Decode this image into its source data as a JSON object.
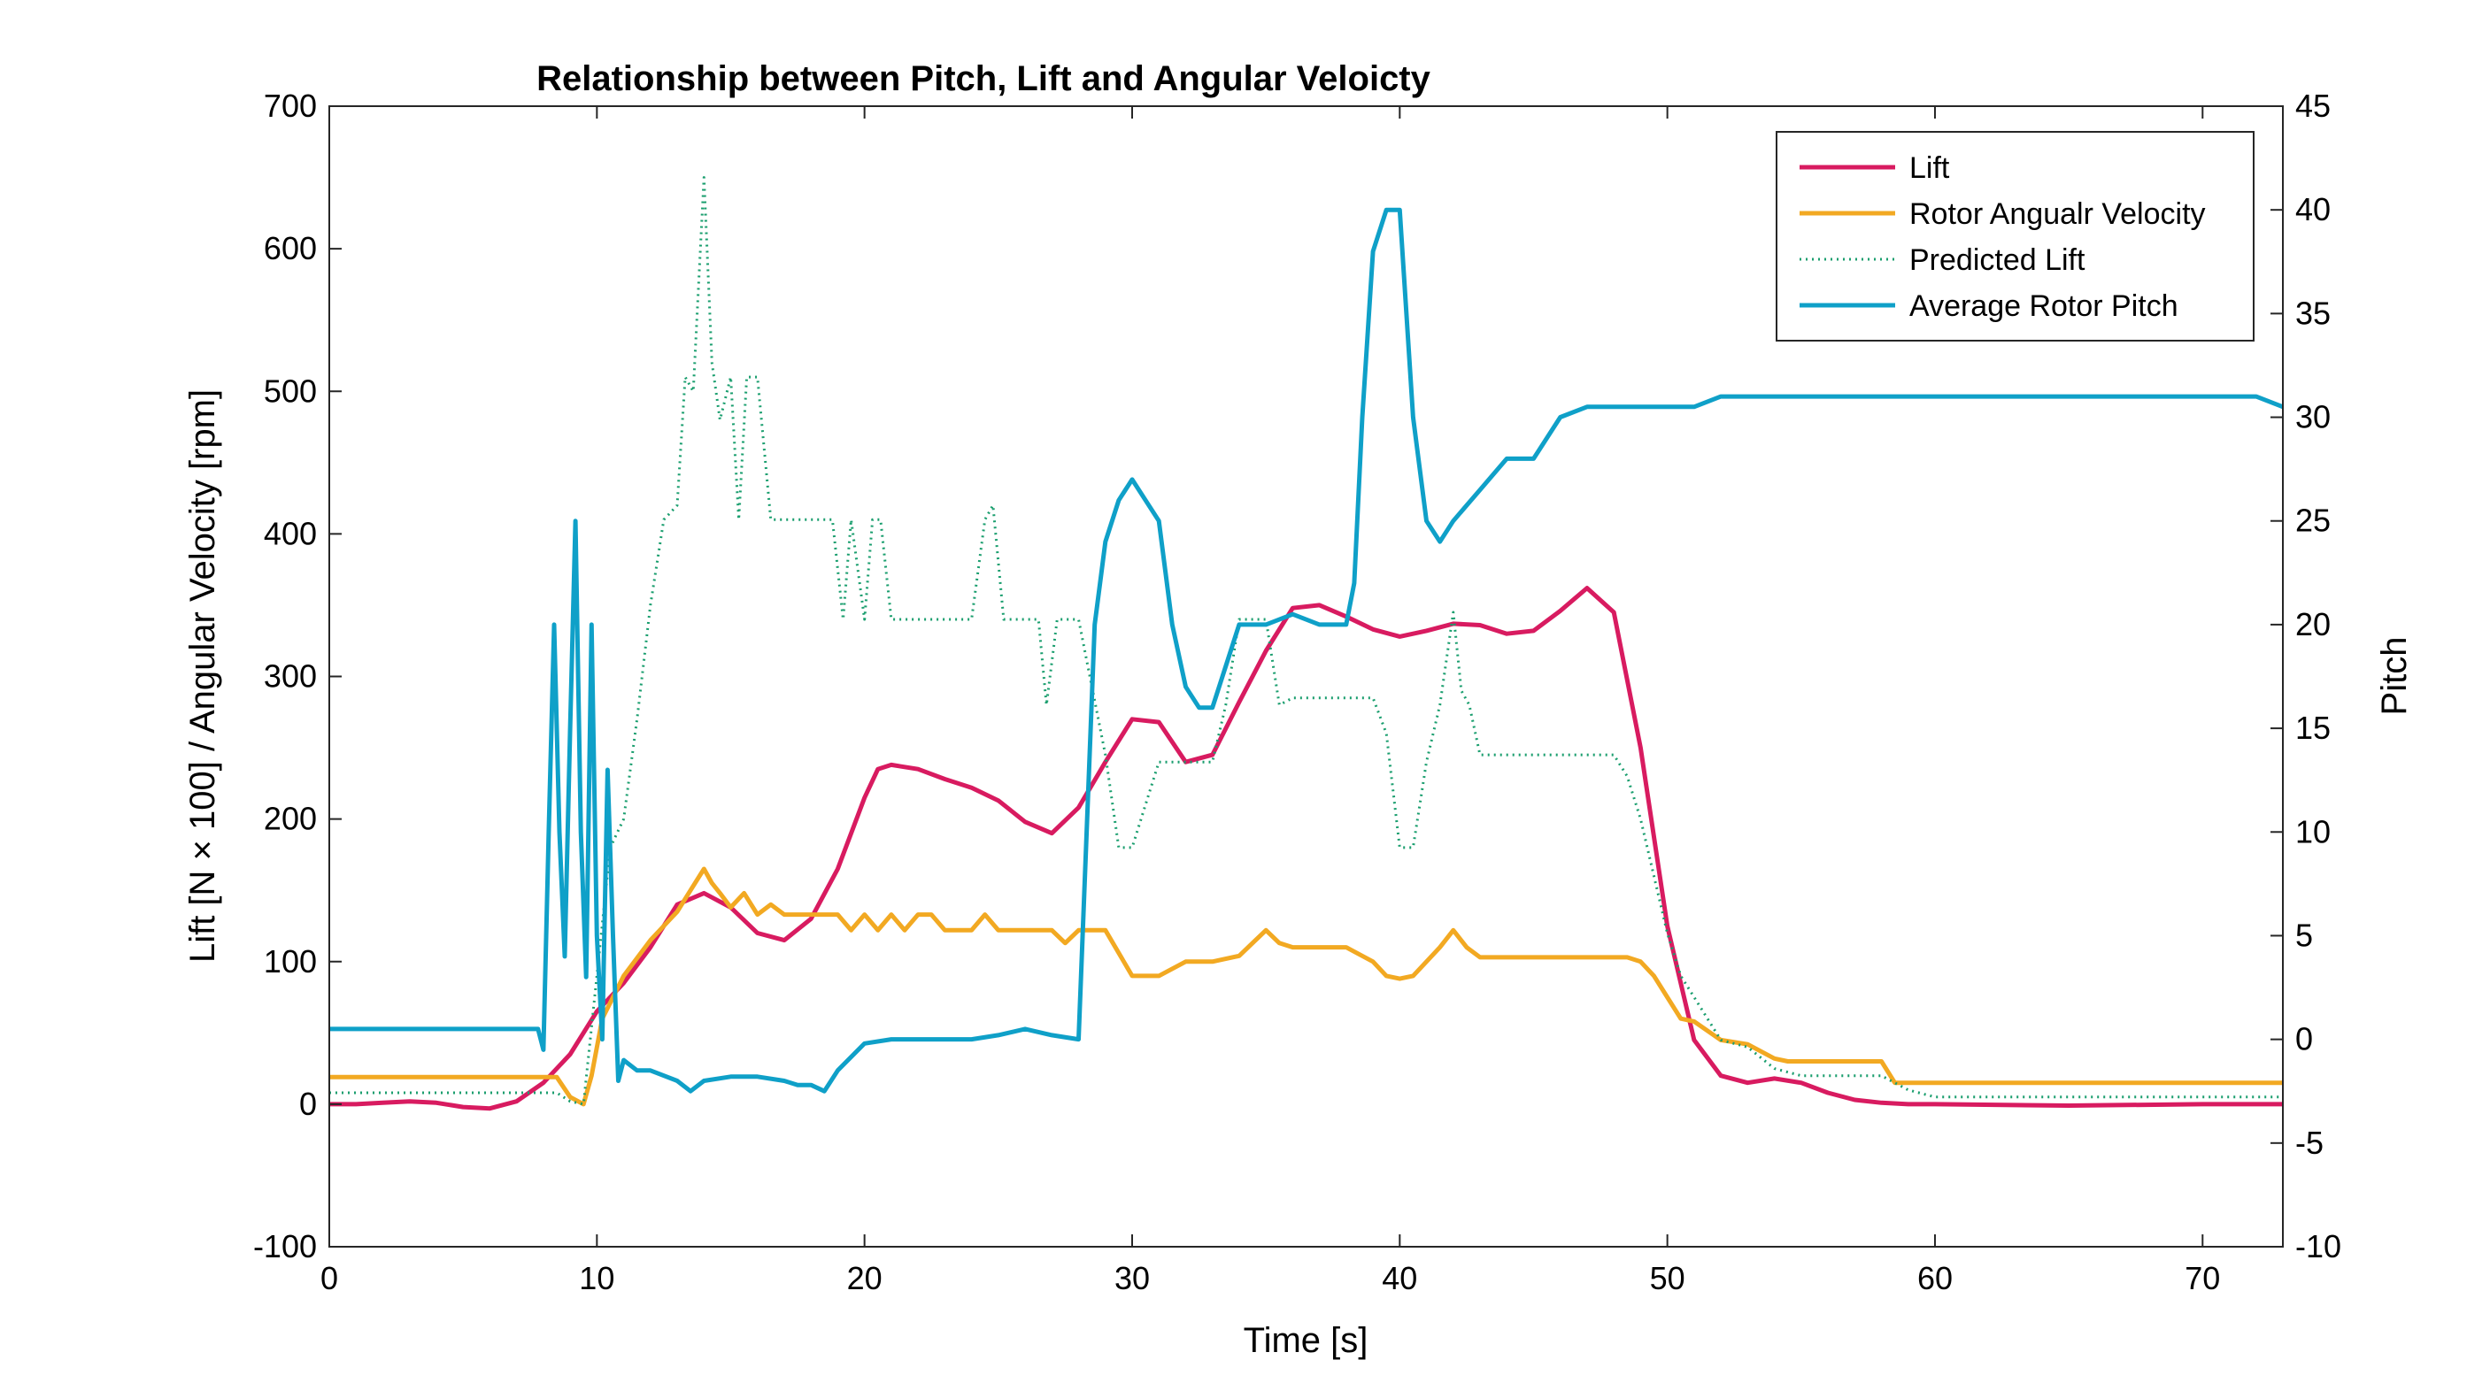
{
  "chart_data": {
    "type": "line",
    "title": "Relationship between Pitch, Lift and Angular Veloicty",
    "xlabel": "Time [s]",
    "ylabel_left": "Lift [N × 100] / Angular Velocity [rpm]",
    "ylabel_right": "Pitch",
    "xlim": [
      0,
      73
    ],
    "ylim_left": [
      -100,
      700
    ],
    "ylim_right": [
      -10,
      45
    ],
    "xticks": [
      0,
      10,
      20,
      30,
      40,
      50,
      60,
      70
    ],
    "yticks_left": [
      -100,
      0,
      100,
      200,
      300,
      400,
      500,
      600,
      700
    ],
    "yticks_right": [
      -10,
      -5,
      0,
      5,
      10,
      15,
      20,
      25,
      30,
      35,
      40,
      45
    ],
    "grid": false,
    "legend_position": "top-right",
    "colors": {
      "lift": "#d81b60",
      "angular_velocity": "#f2a922",
      "predicted_lift": "#1a9e6e",
      "pitch": "#0fa0c8"
    },
    "series": [
      {
        "name": "Lift",
        "axis": "left",
        "style": "solid",
        "color_key": "lift",
        "x": [
          0,
          1,
          2,
          3,
          4,
          5,
          6,
          7,
          8,
          9,
          10,
          11,
          12,
          13,
          14,
          15,
          16,
          17,
          18,
          19,
          20,
          20.5,
          21,
          22,
          23,
          24,
          25,
          26,
          27,
          28,
          29,
          30,
          31,
          32,
          33,
          34,
          35,
          36,
          37,
          38,
          39,
          40,
          41,
          42,
          43,
          44,
          45,
          46,
          47,
          48,
          49,
          50,
          51,
          52,
          53,
          54,
          55,
          56,
          57,
          58,
          59,
          60,
          65,
          70,
          73
        ],
        "values": [
          0,
          0,
          1,
          2,
          1,
          -2,
          -3,
          2,
          15,
          35,
          65,
          85,
          110,
          140,
          148,
          138,
          120,
          115,
          130,
          165,
          215,
          235,
          238,
          235,
          228,
          222,
          213,
          198,
          190,
          208,
          240,
          270,
          268,
          240,
          245,
          282,
          318,
          348,
          350,
          342,
          333,
          328,
          332,
          337,
          336,
          330,
          332,
          346,
          362,
          345,
          250,
          125,
          45,
          20,
          15,
          18,
          15,
          8,
          3,
          1,
          0,
          0,
          -1,
          0,
          0
        ]
      },
      {
        "name": "Rotor Angualr Velocity",
        "axis": "left",
        "style": "solid",
        "color_key": "angular_velocity",
        "x": [
          0,
          8,
          8.5,
          9,
          9.5,
          9.8,
          10.2,
          11,
          12,
          13,
          13.5,
          14,
          14.3,
          14.6,
          15,
          15.5,
          16,
          16.5,
          17,
          18,
          19,
          19.5,
          20,
          20.5,
          21,
          21.5,
          22,
          22.5,
          23,
          24,
          24.5,
          25,
          25.5,
          26,
          27,
          27.5,
          28,
          28.5,
          29,
          30,
          31,
          32,
          33,
          34,
          34.5,
          35,
          35.5,
          36,
          37,
          38,
          39,
          39.5,
          40,
          40.5,
          41,
          41.5,
          42,
          42.5,
          43,
          44,
          45,
          46,
          47,
          48,
          48.5,
          49,
          49.5,
          50,
          50.5,
          51,
          52,
          53,
          54,
          54.5,
          55,
          56,
          57,
          58,
          58.5,
          60,
          73
        ],
        "values": [
          19,
          19,
          19,
          5,
          0,
          20,
          60,
          90,
          115,
          135,
          150,
          165,
          155,
          148,
          138,
          148,
          133,
          140,
          133,
          133,
          133,
          122,
          133,
          122,
          133,
          122,
          133,
          133,
          122,
          122,
          133,
          122,
          122,
          122,
          122,
          113,
          122,
          122,
          122,
          90,
          90,
          100,
          100,
          104,
          113,
          122,
          113,
          110,
          110,
          110,
          100,
          90,
          88,
          90,
          100,
          110,
          122,
          110,
          103,
          103,
          103,
          103,
          103,
          103,
          103,
          100,
          90,
          75,
          60,
          58,
          45,
          42,
          32,
          30,
          30,
          30,
          30,
          30,
          15,
          15,
          15
        ]
      },
      {
        "name": "Predicted Lift",
        "axis": "left",
        "style": "dotted",
        "color_key": "predicted_lift",
        "x": [
          0,
          8,
          8.5,
          9,
          9.5,
          10,
          10.5,
          11,
          11.5,
          12,
          12.5,
          13,
          13.3,
          13.6,
          14,
          14.3,
          14.6,
          15,
          15.3,
          15.6,
          16,
          16.5,
          17,
          18,
          18.8,
          19.2,
          19.5,
          20,
          20.3,
          20.6,
          21,
          21.5,
          22,
          23,
          24,
          24.5,
          24.8,
          25.2,
          25.6,
          26,
          26.5,
          26.8,
          27.2,
          27.6,
          28,
          29,
          29.5,
          30,
          31,
          32,
          32.5,
          33,
          33.5,
          34,
          34.5,
          35,
          35.5,
          36,
          37,
          38,
          39,
          39.5,
          40,
          40.5,
          41,
          41.5,
          42,
          42.3,
          42.6,
          43,
          43.5,
          44,
          45,
          46,
          47,
          48,
          48.5,
          49,
          49.5,
          50,
          50.5,
          51,
          52,
          53,
          54,
          55,
          56,
          57,
          58,
          59,
          60,
          73
        ],
        "values": [
          8,
          8,
          8,
          2,
          0,
          90,
          180,
          200,
          270,
          350,
          410,
          420,
          510,
          500,
          650,
          520,
          480,
          510,
          410,
          510,
          510,
          410,
          410,
          410,
          410,
          340,
          410,
          340,
          410,
          410,
          340,
          340,
          340,
          340,
          340,
          410,
          420,
          340,
          340,
          340,
          340,
          280,
          340,
          340,
          340,
          245,
          180,
          180,
          240,
          240,
          240,
          240,
          280,
          340,
          340,
          340,
          280,
          285,
          285,
          285,
          285,
          260,
          180,
          180,
          240,
          280,
          345,
          290,
          280,
          245,
          245,
          245,
          245,
          245,
          245,
          245,
          230,
          200,
          160,
          120,
          90,
          75,
          45,
          40,
          25,
          20,
          20,
          20,
          20,
          10,
          5,
          5
        ]
      },
      {
        "name": "Average Rotor Pitch",
        "axis": "right",
        "style": "solid",
        "color_key": "pitch",
        "x": [
          0,
          7.8,
          8.0,
          8.2,
          8.4,
          8.6,
          8.8,
          9.0,
          9.2,
          9.4,
          9.6,
          9.8,
          10.0,
          10.2,
          10.4,
          10.6,
          10.8,
          11,
          11.5,
          12,
          13,
          13.5,
          14,
          15,
          16,
          17,
          17.5,
          18,
          18.5,
          19,
          20,
          21,
          22,
          23,
          24,
          25,
          26,
          27,
          28,
          28.3,
          28.6,
          29,
          29.5,
          30,
          30.5,
          31,
          31.5,
          32,
          32.5,
          33,
          33.5,
          34,
          34.5,
          35,
          36,
          37,
          38,
          38.3,
          38.6,
          39,
          39.5,
          40,
          40.5,
          41,
          41.5,
          42,
          43,
          44,
          45,
          46,
          47,
          48,
          49,
          50,
          51,
          52,
          53,
          55,
          60,
          65,
          70,
          72,
          73
        ],
        "values": [
          0.5,
          0.5,
          -0.5,
          10,
          20,
          10,
          4,
          15,
          25,
          10,
          3,
          20,
          5,
          0,
          13,
          5,
          -2,
          -1,
          -1.5,
          -1.5,
          -2,
          -2.5,
          -2,
          -1.8,
          -1.8,
          -2,
          -2.2,
          -2.2,
          -2.5,
          -1.5,
          -0.2,
          0,
          0,
          0,
          0,
          0.2,
          0.5,
          0.2,
          0,
          10,
          20,
          24,
          26,
          27,
          26,
          25,
          20,
          17,
          16,
          16,
          18,
          20,
          20,
          20,
          20.5,
          20,
          20,
          22,
          30,
          38,
          40,
          40,
          30,
          25,
          24,
          25,
          26.5,
          28,
          28,
          30,
          30.5,
          30.5,
          30.5,
          30.5,
          30.5,
          31,
          31,
          31,
          31,
          31,
          31,
          31,
          30.5
        ]
      }
    ]
  }
}
